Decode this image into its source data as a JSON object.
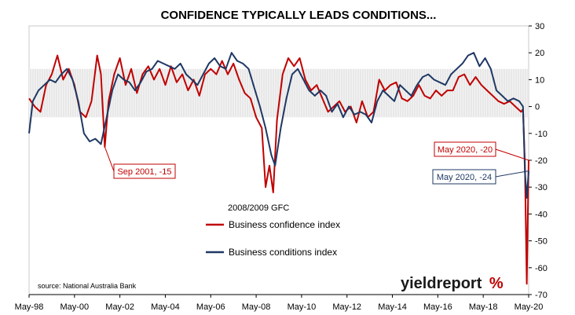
{
  "chart_data": {
    "type": "line",
    "title": "CONFIDENCE TYPICALLY LEADS CONDITIONS...",
    "xlabel": "",
    "ylabel": "",
    "x_tick_labels": [
      "May-98",
      "May-00",
      "May-02",
      "May-04",
      "May-06",
      "May-08",
      "May-10",
      "May-12",
      "May-14",
      "May-16",
      "May-18",
      "May-20"
    ],
    "y_ticks": [
      30,
      20,
      10,
      0,
      -10,
      -20,
      -30,
      -40,
      -50,
      -60,
      -70
    ],
    "ylim": [
      -70,
      30
    ],
    "xlim": [
      "1998-05",
      "2020-05"
    ],
    "grid": "horizontal gridlines off; light grey band between 14 and -4",
    "legend_placement": "center-left",
    "series": [
      {
        "name": "Business confidence index",
        "color": "#c00000",
        "points": [
          [
            "1998-05",
            3
          ],
          [
            "1998-08",
            0
          ],
          [
            "1998-11",
            -2
          ],
          [
            "1999-02",
            8
          ],
          [
            "1999-05",
            12
          ],
          [
            "1999-08",
            19
          ],
          [
            "1999-11",
            10
          ],
          [
            "2000-02",
            14
          ],
          [
            "2000-05",
            8
          ],
          [
            "2000-08",
            -2
          ],
          [
            "2000-11",
            -4
          ],
          [
            "2001-02",
            2
          ],
          [
            "2001-05",
            19
          ],
          [
            "2001-07",
            12
          ],
          [
            "2001-09",
            -15
          ],
          [
            "2001-11",
            2
          ],
          [
            "2002-02",
            12
          ],
          [
            "2002-05",
            18
          ],
          [
            "2002-08",
            8
          ],
          [
            "2002-11",
            14
          ],
          [
            "2003-02",
            5
          ],
          [
            "2003-05",
            12
          ],
          [
            "2003-08",
            15
          ],
          [
            "2003-11",
            10
          ],
          [
            "2004-02",
            14
          ],
          [
            "2004-05",
            8
          ],
          [
            "2004-08",
            15
          ],
          [
            "2004-11",
            9
          ],
          [
            "2005-02",
            12
          ],
          [
            "2005-05",
            6
          ],
          [
            "2005-08",
            10
          ],
          [
            "2005-11",
            4
          ],
          [
            "2006-02",
            12
          ],
          [
            "2006-05",
            14
          ],
          [
            "2006-08",
            12
          ],
          [
            "2006-11",
            17
          ],
          [
            "2007-02",
            12
          ],
          [
            "2007-05",
            16
          ],
          [
            "2007-08",
            10
          ],
          [
            "2007-11",
            5
          ],
          [
            "2008-02",
            3
          ],
          [
            "2008-05",
            -4
          ],
          [
            "2008-08",
            -8
          ],
          [
            "2008-10",
            -30
          ],
          [
            "2008-12",
            -22
          ],
          [
            "2009-02",
            -32
          ],
          [
            "2009-04",
            -5
          ],
          [
            "2009-07",
            12
          ],
          [
            "2009-10",
            18
          ],
          [
            "2010-01",
            15
          ],
          [
            "2010-04",
            18
          ],
          [
            "2010-07",
            10
          ],
          [
            "2010-10",
            6
          ],
          [
            "2011-01",
            8
          ],
          [
            "2011-04",
            3
          ],
          [
            "2011-07",
            -2
          ],
          [
            "2011-10",
            0
          ],
          [
            "2012-01",
            2
          ],
          [
            "2012-04",
            -2
          ],
          [
            "2012-07",
            0
          ],
          [
            "2012-10",
            -6
          ],
          [
            "2013-01",
            2
          ],
          [
            "2013-04",
            -4
          ],
          [
            "2013-07",
            -2
          ],
          [
            "2013-10",
            10
          ],
          [
            "2014-01",
            6
          ],
          [
            "2014-04",
            8
          ],
          [
            "2014-07",
            9
          ],
          [
            "2014-10",
            3
          ],
          [
            "2015-01",
            2
          ],
          [
            "2015-04",
            4
          ],
          [
            "2015-07",
            8
          ],
          [
            "2015-10",
            4
          ],
          [
            "2016-01",
            3
          ],
          [
            "2016-04",
            6
          ],
          [
            "2016-07",
            4
          ],
          [
            "2016-10",
            6
          ],
          [
            "2017-01",
            6
          ],
          [
            "2017-04",
            11
          ],
          [
            "2017-07",
            12
          ],
          [
            "2017-10",
            8
          ],
          [
            "2018-01",
            11
          ],
          [
            "2018-04",
            8
          ],
          [
            "2018-07",
            6
          ],
          [
            "2018-10",
            4
          ],
          [
            "2019-01",
            2
          ],
          [
            "2019-04",
            1
          ],
          [
            "2019-07",
            2
          ],
          [
            "2019-10",
            0
          ],
          [
            "2020-01",
            -2
          ],
          [
            "2020-02",
            -1
          ],
          [
            "2020-03",
            -21
          ],
          [
            "2020-04",
            -66
          ],
          [
            "2020-05",
            -20
          ]
        ]
      },
      {
        "name": "Business conditions index",
        "color": "#1f3864",
        "points": [
          [
            "1998-05",
            -10
          ],
          [
            "1998-07",
            2
          ],
          [
            "1998-10",
            6
          ],
          [
            "1999-01",
            8
          ],
          [
            "1999-04",
            10
          ],
          [
            "1999-07",
            9
          ],
          [
            "1999-10",
            12
          ],
          [
            "2000-01",
            14
          ],
          [
            "2000-04",
            10
          ],
          [
            "2000-07",
            2
          ],
          [
            "2000-10",
            -10
          ],
          [
            "2001-01",
            -13
          ],
          [
            "2001-04",
            -12
          ],
          [
            "2001-07",
            -14
          ],
          [
            "2001-10",
            -4
          ],
          [
            "2002-01",
            6
          ],
          [
            "2002-04",
            12
          ],
          [
            "2002-07",
            10
          ],
          [
            "2002-10",
            9
          ],
          [
            "2003-01",
            6
          ],
          [
            "2003-04",
            9
          ],
          [
            "2003-07",
            13
          ],
          [
            "2003-10",
            14
          ],
          [
            "2004-01",
            17
          ],
          [
            "2004-04",
            16
          ],
          [
            "2004-07",
            15
          ],
          [
            "2004-10",
            14
          ],
          [
            "2005-01",
            16
          ],
          [
            "2005-04",
            12
          ],
          [
            "2005-07",
            10
          ],
          [
            "2005-10",
            8
          ],
          [
            "2006-01",
            12
          ],
          [
            "2006-04",
            16
          ],
          [
            "2006-07",
            18
          ],
          [
            "2006-10",
            15
          ],
          [
            "2007-01",
            14
          ],
          [
            "2007-04",
            20
          ],
          [
            "2007-07",
            17
          ],
          [
            "2007-10",
            16
          ],
          [
            "2008-01",
            14
          ],
          [
            "2008-04",
            7
          ],
          [
            "2008-07",
            0
          ],
          [
            "2008-10",
            -8
          ],
          [
            "2009-01",
            -18
          ],
          [
            "2009-03",
            -22
          ],
          [
            "2009-06",
            -8
          ],
          [
            "2009-09",
            3
          ],
          [
            "2009-12",
            12
          ],
          [
            "2010-03",
            14
          ],
          [
            "2010-06",
            10
          ],
          [
            "2010-09",
            6
          ],
          [
            "2010-12",
            4
          ],
          [
            "2011-03",
            6
          ],
          [
            "2011-06",
            4
          ],
          [
            "2011-09",
            -2
          ],
          [
            "2011-12",
            1
          ],
          [
            "2012-03",
            -4
          ],
          [
            "2012-06",
            0
          ],
          [
            "2012-09",
            -3
          ],
          [
            "2012-12",
            -2
          ],
          [
            "2013-03",
            -3
          ],
          [
            "2013-06",
            -6
          ],
          [
            "2013-09",
            2
          ],
          [
            "2013-12",
            6
          ],
          [
            "2014-03",
            4
          ],
          [
            "2014-06",
            2
          ],
          [
            "2014-09",
            8
          ],
          [
            "2014-12",
            6
          ],
          [
            "2015-03",
            4
          ],
          [
            "2015-06",
            8
          ],
          [
            "2015-09",
            11
          ],
          [
            "2015-12",
            12
          ],
          [
            "2016-03",
            10
          ],
          [
            "2016-06",
            9
          ],
          [
            "2016-09",
            8
          ],
          [
            "2016-12",
            12
          ],
          [
            "2017-03",
            14
          ],
          [
            "2017-06",
            16
          ],
          [
            "2017-09",
            19
          ],
          [
            "2017-12",
            20
          ],
          [
            "2018-03",
            15
          ],
          [
            "2018-06",
            18
          ],
          [
            "2018-09",
            14
          ],
          [
            "2018-12",
            6
          ],
          [
            "2019-03",
            4
          ],
          [
            "2019-06",
            2
          ],
          [
            "2019-09",
            3
          ],
          [
            "2019-12",
            2
          ],
          [
            "2020-02",
            0
          ],
          [
            "2020-03",
            -24
          ],
          [
            "2020-04",
            -34
          ],
          [
            "2020-05",
            -24
          ]
        ]
      }
    ],
    "annotations": [
      {
        "text": "Sep 2001, -15",
        "x": "2001-09",
        "y": -15,
        "color": "#c00000"
      },
      {
        "text": "May 2020, -20",
        "x": "2020-05",
        "y": -20,
        "color": "#c00000"
      },
      {
        "text": "May 2020, -24",
        "x": "2020-05",
        "y": -24,
        "color": "#1f3864"
      },
      {
        "text": "2008/2009 GFC",
        "color": "#000000"
      }
    ],
    "source": "source: National Australia Bank",
    "logo": {
      "word": "yieldreport",
      "symbol": "%",
      "word_color": "#1a1a1a",
      "symbol_color": "#c00000"
    }
  }
}
